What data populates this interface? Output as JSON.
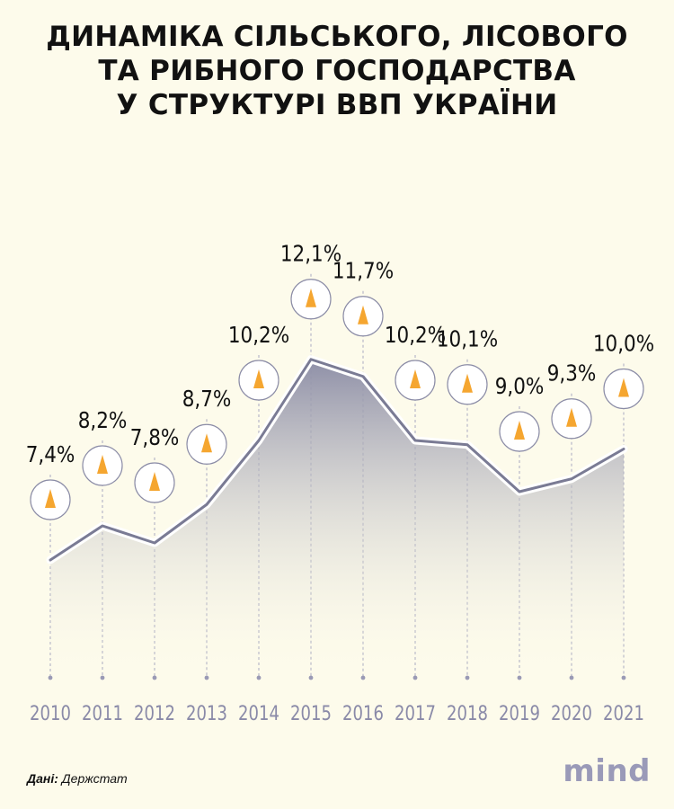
{
  "title_lines": [
    "ДИНАМІКА СІЛЬСЬКОГО, ЛІСОВОГО",
    "ТА РИБНОГО ГОСПОДАРСТВА",
    "У СТРУКТУРІ ВВП УКРАЇНИ"
  ],
  "source_label": "Дані:",
  "source_value": "Держстат",
  "logo": "mind",
  "colors": {
    "background": "#fdfbeb",
    "area_top": "#8e8fa7",
    "line": "#7a7b94",
    "marker": "#f5a630",
    "year_labels": "#8a8aa8"
  },
  "chart_data": {
    "type": "area",
    "x": [
      "2010",
      "2011",
      "2012",
      "2013",
      "2014",
      "2015",
      "2016",
      "2017",
      "2018",
      "2019",
      "2020",
      "2021"
    ],
    "values": [
      7.4,
      8.2,
      7.8,
      8.7,
      10.2,
      12.1,
      11.7,
      10.2,
      10.1,
      9.0,
      9.3,
      10.0
    ],
    "labels": [
      "7,4%",
      "8,2%",
      "7,8%",
      "8,7%",
      "10,2%",
      "12,1%",
      "11,7%",
      "10,2%",
      "10,1%",
      "9,0%",
      "9,3%",
      "10,0%"
    ],
    "unit": "%",
    "grid": false,
    "legend": "none"
  }
}
